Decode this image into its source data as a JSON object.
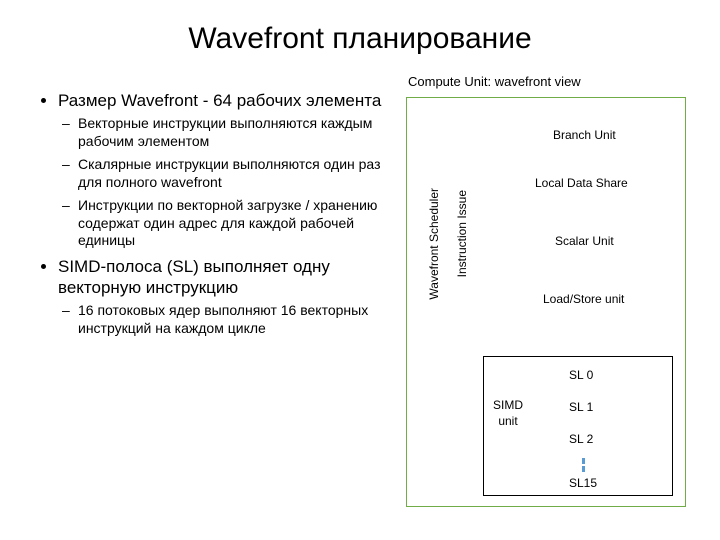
{
  "title": "Wavefront планирование",
  "bullets": {
    "b1": "Размер Wavefront - 64 рабочих элемента",
    "b1s1": "Векторные инструкции выполняются каждым рабочим элементом",
    "b1s2": "Скалярные инструкции выполняются один раз для полного wavefront",
    "b1s3": "Инструкции по векторной загрузке / хранению содержат один адрес для каждой рабочей единицы",
    "b2": "SIMD-полоса (SL) выполняет одну векторную инструкцию",
    "b2s1": "16 потоковых ядер выполняют 16 векторных инструкций на каждом цикле"
  },
  "diagram": {
    "title": "Compute Unit: wavefront view",
    "border_color": "#70ad47",
    "scheduler": "Wavefront Scheduler",
    "issue": "Instruction Issue",
    "branch": "Branch Unit",
    "lds": "Local Data Share",
    "scalar": "Scalar Unit",
    "loadstore": "Load/Store unit",
    "simd": "SIMD\nunit",
    "simd_box_border": "#000000",
    "sl0": "SL 0",
    "sl1": "SL 1",
    "sl2": "SL 2",
    "sl15": "SL15",
    "dot_color": "#5b9bd5"
  },
  "fonts": {
    "title_size": 30,
    "bullet_size": 17,
    "sub_bullet_size": 14,
    "diagram_label_size": 12
  },
  "colors": {
    "background": "#ffffff",
    "text": "#000000"
  }
}
